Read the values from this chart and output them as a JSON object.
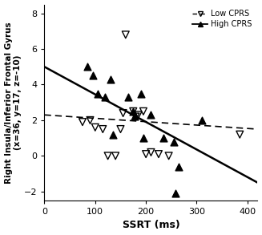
{
  "title": "",
  "xlabel": "SSRT (ms)",
  "ylabel": "Right Insula/Inferior Frontal Gyrus\n(x=36, y=17, z=-10)",
  "xlim": [
    0,
    420
  ],
  "ylim": [
    -2.5,
    8.5
  ],
  "xticks": [
    0,
    100,
    200,
    300,
    400
  ],
  "yticks": [
    -2,
    0,
    2,
    4,
    6,
    8
  ],
  "low_cprs_x": [
    160,
    75,
    90,
    100,
    115,
    125,
    140,
    150,
    155,
    175,
    180,
    185,
    195,
    200,
    210,
    225,
    245,
    385
  ],
  "low_cprs_y": [
    6.8,
    1.9,
    2.0,
    1.6,
    1.5,
    0.0,
    0.0,
    1.5,
    2.4,
    2.5,
    2.2,
    2.3,
    2.5,
    0.1,
    0.2,
    0.1,
    0.0,
    1.2
  ],
  "high_cprs_x": [
    85,
    95,
    105,
    120,
    130,
    135,
    165,
    175,
    178,
    190,
    195,
    210,
    235,
    255,
    258,
    265,
    310
  ],
  "high_cprs_y": [
    5.0,
    4.5,
    3.5,
    3.3,
    4.3,
    1.2,
    3.3,
    2.5,
    2.2,
    3.5,
    1.0,
    2.3,
    1.0,
    0.8,
    -2.1,
    -0.6,
    2.0
  ],
  "solid_line_x": [
    0,
    420
  ],
  "solid_line_y": [
    5.0,
    -1.5
  ],
  "dashed_line_x": [
    0,
    420
  ],
  "dashed_line_y": [
    2.3,
    1.5
  ],
  "marker_color": "#000000",
  "bg_color": "#ffffff"
}
